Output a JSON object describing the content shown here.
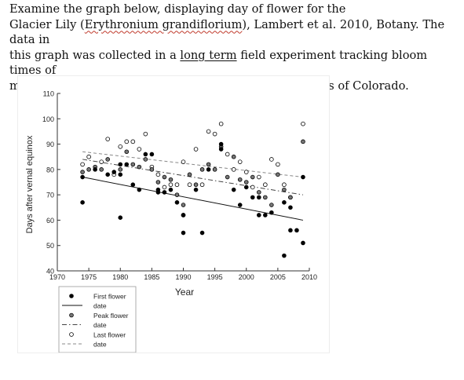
{
  "question": {
    "line1": "Examine the graph below, displaying day of flower for the",
    "line2_pre": "Glacier Lily (",
    "line2_species": "Erythronium grandiflorium",
    "line2_post": "), Lambert et al. 2010, Botany. The data in",
    "line3_pre": "this graph was collected in a ",
    "line3_link": "long term",
    "line3_post": " field experiment tracking bloom times of",
    "line4": "many different flowering plants in the Rocky Mountains of Colorado."
  },
  "chart_data": {
    "type": "scatter",
    "xlabel": "Year",
    "ylabel": "Days after vernal equinox",
    "xlim": [
      1970,
      2010
    ],
    "ylim": [
      40,
      110
    ],
    "xticks": [
      1970,
      1975,
      1980,
      1985,
      1990,
      1995,
      2000,
      2005,
      2010
    ],
    "yticks": [
      40,
      50,
      60,
      70,
      80,
      90,
      100,
      110
    ],
    "legend_position": "bottom-left (below the plot)",
    "colors": {
      "first": "#000000",
      "peak": "#777777",
      "last": "#ffffff"
    },
    "series": [
      {
        "name": "First flower date",
        "marker": "filled-black",
        "points": [
          [
            1974,
            77
          ],
          [
            1974,
            67
          ],
          [
            1976,
            80
          ],
          [
            1978,
            78
          ],
          [
            1979,
            79
          ],
          [
            1980,
            78
          ],
          [
            1980,
            82
          ],
          [
            1980,
            61
          ],
          [
            1981,
            82
          ],
          [
            1982,
            74
          ],
          [
            1983,
            72
          ],
          [
            1984,
            86
          ],
          [
            1985,
            86
          ],
          [
            1986,
            72
          ],
          [
            1986,
            71
          ],
          [
            1987,
            71
          ],
          [
            1988,
            72
          ],
          [
            1989,
            67
          ],
          [
            1990,
            55
          ],
          [
            1990,
            62
          ],
          [
            1990,
            62
          ],
          [
            1992,
            72
          ],
          [
            1993,
            55
          ],
          [
            1994,
            80
          ],
          [
            1996,
            90
          ],
          [
            1996,
            88
          ],
          [
            1998,
            72
          ],
          [
            1999,
            66
          ],
          [
            2000,
            73
          ],
          [
            2001,
            69
          ],
          [
            2002,
            69
          ],
          [
            2002,
            62
          ],
          [
            2003,
            62
          ],
          [
            2004,
            63
          ],
          [
            2006,
            67
          ],
          [
            2006,
            46
          ],
          [
            2007,
            65
          ],
          [
            2007,
            56
          ],
          [
            2008,
            56
          ],
          [
            2009,
            51
          ],
          [
            2009,
            77
          ]
        ]
      },
      {
        "name": "Peak flower date",
        "marker": "filled-grey",
        "points": [
          [
            1974,
            79
          ],
          [
            1975,
            80
          ],
          [
            1976,
            81
          ],
          [
            1977,
            80
          ],
          [
            1978,
            84
          ],
          [
            1980,
            80
          ],
          [
            1981,
            87
          ],
          [
            1982,
            82
          ],
          [
            1983,
            81
          ],
          [
            1984,
            84
          ],
          [
            1985,
            80
          ],
          [
            1986,
            75
          ],
          [
            1987,
            77
          ],
          [
            1988,
            76
          ],
          [
            1989,
            70
          ],
          [
            1990,
            66
          ],
          [
            1991,
            78
          ],
          [
            1992,
            74
          ],
          [
            1993,
            80
          ],
          [
            1994,
            82
          ],
          [
            1995,
            80
          ],
          [
            1996,
            89
          ],
          [
            1997,
            77
          ],
          [
            1998,
            85
          ],
          [
            1999,
            76
          ],
          [
            2000,
            75
          ],
          [
            2001,
            77
          ],
          [
            2002,
            71
          ],
          [
            2003,
            69
          ],
          [
            2004,
            66
          ],
          [
            2005,
            78
          ],
          [
            2006,
            72
          ],
          [
            2007,
            69
          ],
          [
            2009,
            91
          ]
        ]
      },
      {
        "name": "Last flower date",
        "marker": "open-circle",
        "points": [
          [
            1974,
            82
          ],
          [
            1975,
            85
          ],
          [
            1977,
            83
          ],
          [
            1978,
            92
          ],
          [
            1979,
            78
          ],
          [
            1980,
            89
          ],
          [
            1981,
            91
          ],
          [
            1982,
            91
          ],
          [
            1983,
            88
          ],
          [
            1984,
            94
          ],
          [
            1985,
            81
          ],
          [
            1986,
            78
          ],
          [
            1987,
            73
          ],
          [
            1988,
            74
          ],
          [
            1989,
            74
          ],
          [
            1990,
            83
          ],
          [
            1991,
            74
          ],
          [
            1992,
            88
          ],
          [
            1993,
            74
          ],
          [
            1994,
            95
          ],
          [
            1995,
            94
          ],
          [
            1996,
            98
          ],
          [
            1997,
            86
          ],
          [
            1998,
            80
          ],
          [
            1999,
            83
          ],
          [
            2000,
            79
          ],
          [
            2001,
            73
          ],
          [
            2002,
            77
          ],
          [
            2003,
            74
          ],
          [
            2004,
            84
          ],
          [
            2005,
            82
          ],
          [
            2006,
            74
          ],
          [
            2007,
            69
          ],
          [
            2009,
            98
          ]
        ]
      }
    ],
    "trendlines": [
      {
        "name": "First flower date",
        "style": "solid",
        "from": [
          1974,
          77
        ],
        "to": [
          2009,
          60
        ]
      },
      {
        "name": "Peak flower date",
        "style": "dash-dot",
        "from": [
          1974,
          84
        ],
        "to": [
          2009,
          70
        ]
      },
      {
        "name": "Last flower date",
        "style": "dashed",
        "from": [
          1974,
          87
        ],
        "to": [
          2009,
          77
        ]
      }
    ]
  }
}
